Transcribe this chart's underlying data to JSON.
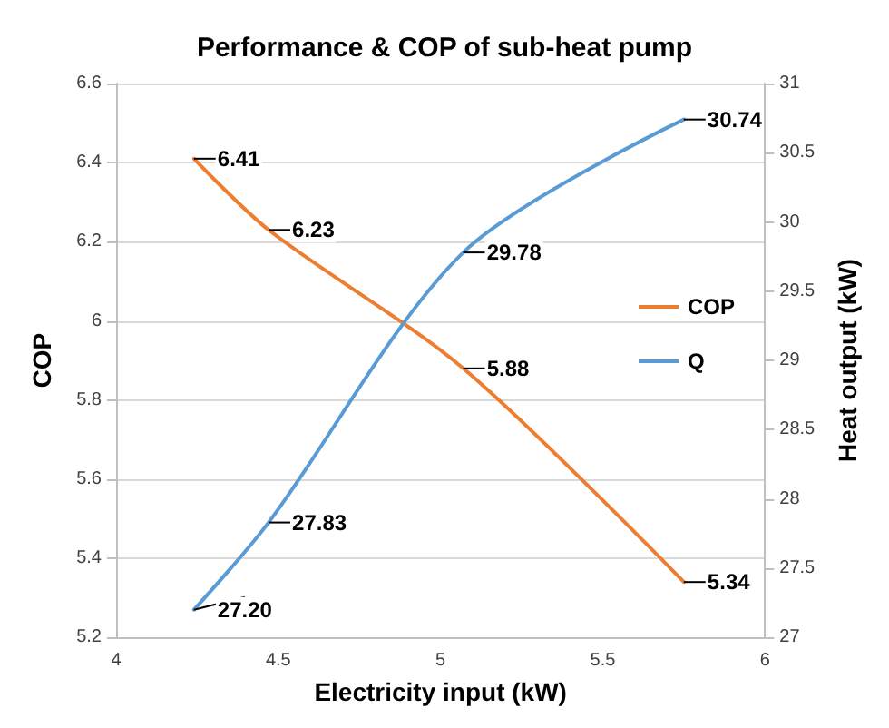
{
  "chart_data": {
    "type": "line",
    "title": "Performance & COP of sub-heat pump",
    "xlabel": "Electricity input (kW)",
    "ylabel": "COP",
    "y2label": "Heat output (kW)",
    "x": [
      4.24,
      4.47,
      5.07,
      5.75
    ],
    "series": [
      {
        "name": "COP",
        "color": "#ed7d31",
        "values": [
          6.41,
          6.23,
          5.88,
          5.34
        ],
        "value_labels": [
          "6.41",
          "6.23",
          "5.88",
          "5.34"
        ]
      },
      {
        "name": "Q",
        "color": "#5b9bd5",
        "axis": "y2",
        "values": [
          27.2,
          27.83,
          29.78,
          30.74
        ],
        "value_labels": [
          "27.20",
          "27.83",
          "29.78",
          "30.74"
        ]
      }
    ],
    "xlim": [
      4,
      6
    ],
    "xticks": [
      4,
      4.5,
      5,
      5.5,
      6
    ],
    "ylim": [
      5.2,
      6.6
    ],
    "yticks": [
      5.2,
      5.4,
      5.6,
      5.8,
      6,
      6.2,
      6.4,
      6.6
    ],
    "y2lim": [
      27,
      31
    ],
    "y2ticks": [
      27,
      27.5,
      28,
      28.5,
      29,
      29.5,
      30,
      30.5,
      31
    ],
    "grid": "y",
    "legend": "right",
    "line_style": "solid"
  }
}
